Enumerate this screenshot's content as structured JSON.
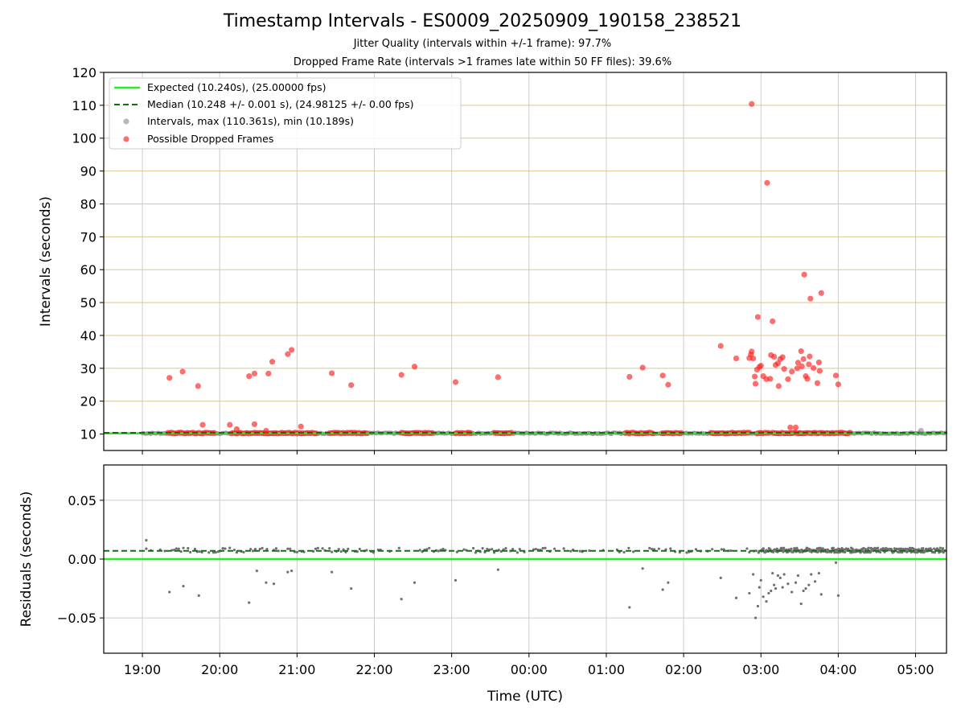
{
  "title": "Timestamp Intervals - ES0009_20250909_190158_238521",
  "subtitle1": "Jitter Quality (intervals within +/-1 frame): 97.7%",
  "subtitle2": "Dropped Frame Rate (intervals >1 frames late within 50 FF files): 39.6%",
  "colors": {
    "expected": "#22ee22",
    "median": "#107010",
    "intervals": "#888888",
    "dropped": "#ff2020",
    "goldgrid": "#d8c890",
    "vgrid": "#cccccc"
  },
  "chart_data": [
    {
      "type": "scatter",
      "ylabel": "Intervals (seconds)",
      "xlabel": "",
      "ylim": [
        5,
        120
      ],
      "xlim_hours": [
        18.5,
        29.4
      ],
      "x_ticks": [
        "19:00",
        "20:00",
        "21:00",
        "22:00",
        "23:00",
        "00:00",
        "01:00",
        "02:00",
        "03:00",
        "04:00",
        "05:00"
      ],
      "y_ticks": [
        10,
        20,
        30,
        40,
        50,
        60,
        70,
        80,
        90,
        100,
        110,
        120
      ],
      "legend_location": "upper-left",
      "legend": [
        {
          "label": "Expected (10.240s), (25.00000 fps)",
          "kind": "line-solid"
        },
        {
          "label": "Median (10.248 +/- 0.001 s), (24.98125 +/- 0.00 fps)",
          "kind": "line-dashed"
        },
        {
          "label": "Intervals, max (110.361s), min (10.189s)",
          "kind": "dot-gray"
        },
        {
          "label": "Possible Dropped Frames",
          "kind": "dot-red"
        }
      ],
      "expected_value": 10.24,
      "median_value": 10.248,
      "baseline_series_range_hours": [
        19.0,
        29.4
      ],
      "baseline_dropped_clusters_hours": [
        [
          19.33,
          19.95
        ],
        [
          20.15,
          21.25
        ],
        [
          21.42,
          21.62
        ],
        [
          21.65,
          21.92
        ],
        [
          22.35,
          22.75
        ],
        [
          23.05,
          23.25
        ],
        [
          23.55,
          23.78
        ],
        [
          25.25,
          25.62
        ],
        [
          25.72,
          25.98
        ],
        [
          26.35,
          26.85
        ],
        [
          26.95,
          27.1
        ],
        [
          27.15,
          27.5
        ],
        [
          27.5,
          28.15
        ]
      ],
      "dropped_points": [
        [
          19.35,
          27.1
        ],
        [
          19.52,
          29
        ],
        [
          19.72,
          24.6
        ],
        [
          19.78,
          12.8
        ],
        [
          20.13,
          12.8
        ],
        [
          20.22,
          11.5
        ],
        [
          20.38,
          27.6
        ],
        [
          20.45,
          28.4
        ],
        [
          20.45,
          13
        ],
        [
          20.6,
          11
        ],
        [
          20.63,
          28.4
        ],
        [
          20.68,
          32
        ],
        [
          20.88,
          34.3
        ],
        [
          20.93,
          35.6
        ],
        [
          21.05,
          12.3
        ],
        [
          21.45,
          28.5
        ],
        [
          21.7,
          24.9
        ],
        [
          22.35,
          28
        ],
        [
          22.52,
          30.5
        ],
        [
          23.05,
          25.8
        ],
        [
          23.6,
          27.3
        ],
        [
          25.3,
          27.4
        ],
        [
          25.47,
          30.2
        ],
        [
          25.73,
          27.8
        ],
        [
          25.8,
          25
        ],
        [
          26.48,
          36.8
        ],
        [
          26.68,
          33
        ],
        [
          26.85,
          33.1
        ],
        [
          26.87,
          34.2
        ],
        [
          26.88,
          35.1
        ],
        [
          26.9,
          33
        ],
        [
          26.92,
          27.5
        ],
        [
          26.93,
          25.3
        ],
        [
          26.95,
          29.6
        ],
        [
          26.96,
          45.6
        ],
        [
          26.98,
          30.4
        ],
        [
          27.0,
          30.8
        ],
        [
          27.03,
          27.6
        ],
        [
          27.07,
          26.7
        ],
        [
          27.08,
          86.4
        ],
        [
          27.12,
          26.8
        ],
        [
          27.13,
          34
        ],
        [
          27.15,
          44.3
        ],
        [
          27.17,
          33.5
        ],
        [
          27.19,
          31
        ],
        [
          27.22,
          31.5
        ],
        [
          27.23,
          24.6
        ],
        [
          27.25,
          32.8
        ],
        [
          27.28,
          33.4
        ],
        [
          27.3,
          29.8
        ],
        [
          27.35,
          26.7
        ],
        [
          27.38,
          12
        ],
        [
          27.4,
          29
        ],
        [
          27.45,
          12
        ],
        [
          27.47,
          30
        ],
        [
          27.48,
          31.7
        ],
        [
          27.52,
          35.2
        ],
        [
          27.53,
          30.6
        ],
        [
          27.55,
          32.8
        ],
        [
          27.56,
          58.5
        ],
        [
          27.58,
          27.6
        ],
        [
          27.6,
          26.8
        ],
        [
          27.62,
          31.2
        ],
        [
          27.63,
          33.6
        ],
        [
          27.64,
          51.2
        ],
        [
          27.68,
          30.1
        ],
        [
          27.73,
          25.5
        ],
        [
          27.75,
          31.8
        ],
        [
          27.76,
          29.2
        ],
        [
          27.78,
          52.9
        ],
        [
          27.97,
          27.8
        ],
        [
          28.0,
          25.1
        ],
        [
          26.88,
          110.4
        ]
      ],
      "gray_points": [
        [
          29.07,
          11
        ]
      ]
    },
    {
      "type": "scatter",
      "ylabel": "Residuals (seconds)",
      "xlabel": "Time (UTC)",
      "ylim": [
        -0.08,
        0.08
      ],
      "xlim_hours": [
        18.5,
        29.4
      ],
      "x_ticks": [
        "19:00",
        "20:00",
        "21:00",
        "22:00",
        "23:00",
        "00:00",
        "01:00",
        "02:00",
        "03:00",
        "04:00",
        "05:00"
      ],
      "y_ticks": [
        "0.05",
        "0.00",
        "−0.05"
      ],
      "y_tick_values": [
        0.05,
        0.0,
        -0.05
      ],
      "expected_value": 0.0,
      "median_value": 0.007,
      "residual_band_center": 0.0075,
      "residual_points": [
        [
          19.05,
          0.016
        ],
        [
          19.35,
          -0.028
        ],
        [
          19.53,
          -0.023
        ],
        [
          19.73,
          -0.031
        ],
        [
          20.38,
          -0.037
        ],
        [
          20.48,
          -0.01
        ],
        [
          20.6,
          -0.02
        ],
        [
          20.7,
          -0.021
        ],
        [
          20.88,
          -0.011
        ],
        [
          20.93,
          -0.01
        ],
        [
          21.45,
          -0.011
        ],
        [
          21.7,
          -0.025
        ],
        [
          22.35,
          -0.034
        ],
        [
          22.52,
          -0.02
        ],
        [
          23.05,
          -0.018
        ],
        [
          23.6,
          -0.009
        ],
        [
          25.3,
          -0.041
        ],
        [
          25.47,
          -0.008
        ],
        [
          25.73,
          -0.026
        ],
        [
          25.8,
          -0.02
        ],
        [
          26.48,
          -0.016
        ],
        [
          26.68,
          -0.033
        ],
        [
          26.85,
          -0.029
        ],
        [
          26.9,
          -0.013
        ],
        [
          26.93,
          -0.05
        ],
        [
          26.96,
          -0.04
        ],
        [
          26.98,
          -0.024
        ],
        [
          27.0,
          -0.018
        ],
        [
          27.03,
          -0.032
        ],
        [
          27.07,
          -0.036
        ],
        [
          27.1,
          -0.029
        ],
        [
          27.13,
          -0.027
        ],
        [
          27.15,
          -0.012
        ],
        [
          27.17,
          -0.022
        ],
        [
          27.19,
          -0.025
        ],
        [
          27.22,
          -0.014
        ],
        [
          27.25,
          -0.016
        ],
        [
          27.28,
          -0.024
        ],
        [
          27.3,
          -0.013
        ],
        [
          27.35,
          -0.021
        ],
        [
          27.4,
          -0.028
        ],
        [
          27.45,
          -0.02
        ],
        [
          27.48,
          -0.014
        ],
        [
          27.52,
          -0.038
        ],
        [
          27.55,
          -0.027
        ],
        [
          27.58,
          -0.025
        ],
        [
          27.62,
          -0.022
        ],
        [
          27.65,
          -0.013
        ],
        [
          27.7,
          -0.019
        ],
        [
          27.75,
          -0.012
        ],
        [
          27.78,
          -0.03
        ],
        [
          27.97,
          -0.003
        ],
        [
          28.0,
          -0.031
        ]
      ]
    }
  ]
}
